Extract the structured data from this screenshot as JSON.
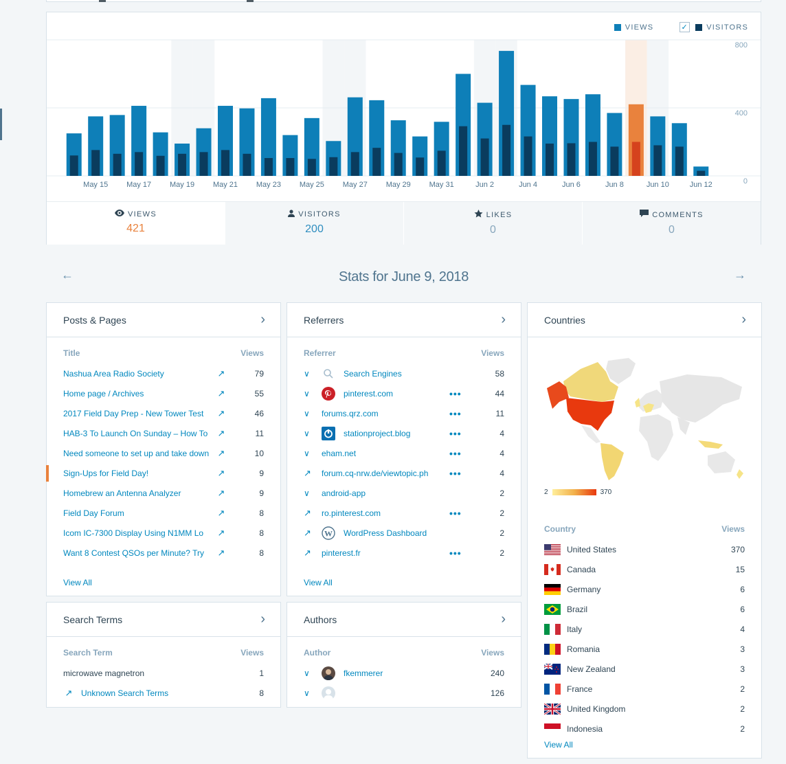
{
  "chart": {
    "legend": {
      "views": "VIEWS",
      "visitors": "VISITORS"
    },
    "y_ticks": [
      "800",
      "400",
      "0"
    ],
    "x_labels": [
      "May 15",
      "May 17",
      "May 19",
      "May 21",
      "May 23",
      "May 25",
      "May 27",
      "May 29",
      "May 31",
      "Jun 2",
      "Jun 4",
      "Jun 6",
      "Jun 8",
      "Jun 10",
      "Jun 12"
    ],
    "colors": {
      "views": "#0e7fb8",
      "visitors": "#0a3c5e",
      "selected_views": "#e9823d",
      "selected_visitors": "#d5421d",
      "weekend_band": "#f3f6f8",
      "selected_band": "#fbeee4"
    }
  },
  "chart_data": {
    "type": "bar",
    "categories": [
      "May 14",
      "May 15",
      "May 16",
      "May 17",
      "May 18",
      "May 19",
      "May 20",
      "May 21",
      "May 22",
      "May 23",
      "May 24",
      "May 25",
      "May 26",
      "May 27",
      "May 28",
      "May 29",
      "May 30",
      "May 31",
      "Jun 1",
      "Jun 2",
      "Jun 3",
      "Jun 4",
      "Jun 5",
      "Jun 6",
      "Jun 7",
      "Jun 8",
      "Jun 9",
      "Jun 10",
      "Jun 11",
      "Jun 12"
    ],
    "series": [
      {
        "name": "VIEWS",
        "values": [
          250,
          350,
          358,
          412,
          256,
          190,
          280,
          412,
          397,
          457,
          240,
          340,
          205,
          462,
          445,
          327,
          232,
          318,
          600,
          430,
          735,
          535,
          468,
          452,
          480,
          370,
          421,
          350,
          310,
          55
        ]
      },
      {
        "name": "VISITORS",
        "values": [
          120,
          152,
          130,
          140,
          118,
          130,
          140,
          152,
          130,
          105,
          105,
          100,
          110,
          140,
          165,
          135,
          108,
          148,
          292,
          220,
          300,
          232,
          190,
          192,
          200,
          172,
          200,
          180,
          172,
          30
        ]
      }
    ],
    "selected_index": 26,
    "ylim": [
      0,
      800
    ],
    "grid": true,
    "legend_position": "top-right"
  },
  "tabs": [
    {
      "label": "VIEWS",
      "value": "421",
      "icon": "eye-icon"
    },
    {
      "label": "VISITORS",
      "value": "200",
      "icon": "person-icon"
    },
    {
      "label": "LIKES",
      "value": "0",
      "icon": "star-icon"
    },
    {
      "label": "COMMENTS",
      "value": "0",
      "icon": "comment-icon"
    }
  ],
  "date_title": "Stats for June 9, 2018",
  "posts": {
    "title": "Posts & Pages",
    "col_title": "Title",
    "col_views": "Views",
    "rows": [
      {
        "name": "Nashua Area Radio Society",
        "views": "79"
      },
      {
        "name": "Home page / Archives",
        "views": "55"
      },
      {
        "name": "2017 Field Day Prep - New Tower Test",
        "views": "46"
      },
      {
        "name": "HAB-3 To Launch On Sunday – How To",
        "views": "11"
      },
      {
        "name": "Need someone to set up and take down",
        "views": "10"
      },
      {
        "name": "Sign-Ups for Field Day!",
        "views": "9"
      },
      {
        "name": "Homebrew an Antenna Analyzer",
        "views": "9"
      },
      {
        "name": "Field Day Forum",
        "views": "8"
      },
      {
        "name": "Icom IC-7300 Display Using N1MM Lo",
        "views": "8"
      },
      {
        "name": "Want 8 Contest QSOs per Minute? Try",
        "views": "8"
      }
    ],
    "view_all": "View All"
  },
  "referrers": {
    "title": "Referrers",
    "col_title": "Referrer",
    "col_views": "Views",
    "rows": [
      {
        "name": "Search Engines",
        "views": "58",
        "lead": "chevron",
        "icon": "search-icon",
        "dots": false
      },
      {
        "name": "pinterest.com",
        "views": "44",
        "lead": "chevron",
        "icon": "pinterest-icon",
        "dots": true
      },
      {
        "name": "forums.qrz.com",
        "views": "11",
        "lead": "chevron",
        "icon": "",
        "dots": true
      },
      {
        "name": "stationproject.blog",
        "views": "4",
        "lead": "chevron",
        "icon": "power-icon",
        "dots": true
      },
      {
        "name": "eham.net",
        "views": "4",
        "lead": "chevron",
        "icon": "",
        "dots": true
      },
      {
        "name": "forum.cq-nrw.de/viewtopic.ph",
        "views": "4",
        "lead": "external",
        "icon": "",
        "dots": true
      },
      {
        "name": "android-app",
        "views": "2",
        "lead": "chevron",
        "icon": "",
        "dots": false
      },
      {
        "name": "ro.pinterest.com",
        "views": "2",
        "lead": "external",
        "icon": "",
        "dots": true
      },
      {
        "name": "WordPress Dashboard",
        "views": "2",
        "lead": "external",
        "icon": "wordpress-icon",
        "dots": false
      },
      {
        "name": "pinterest.fr",
        "views": "2",
        "lead": "external",
        "icon": "",
        "dots": true
      }
    ],
    "view_all": "View All"
  },
  "countries": {
    "title": "Countries",
    "scale_min": "2",
    "scale_max": "370",
    "col_title": "Country",
    "col_views": "Views",
    "rows": [
      {
        "name": "United States",
        "views": "370",
        "flag": "us"
      },
      {
        "name": "Canada",
        "views": "15",
        "flag": "ca"
      },
      {
        "name": "Germany",
        "views": "6",
        "flag": "de"
      },
      {
        "name": "Brazil",
        "views": "6",
        "flag": "br"
      },
      {
        "name": "Italy",
        "views": "4",
        "flag": "it"
      },
      {
        "name": "Romania",
        "views": "3",
        "flag": "ro"
      },
      {
        "name": "New Zealand",
        "views": "3",
        "flag": "nz"
      },
      {
        "name": "France",
        "views": "2",
        "flag": "fr"
      },
      {
        "name": "United Kingdom",
        "views": "2",
        "flag": "gb"
      },
      {
        "name": "Indonesia",
        "views": "2",
        "flag": "id"
      }
    ],
    "view_all": "View All"
  },
  "search_terms": {
    "title": "Search Terms",
    "col_title": "Search Term",
    "col_views": "Views",
    "rows": [
      {
        "name": "microwave magnetron",
        "views": "1"
      },
      {
        "name": "Unknown Search Terms",
        "views": "8"
      }
    ]
  },
  "authors": {
    "title": "Authors",
    "col_title": "Author",
    "col_views": "Views",
    "rows": [
      {
        "name": "fkemmerer",
        "views": "240"
      },
      {
        "name": "",
        "views": "126"
      }
    ]
  }
}
